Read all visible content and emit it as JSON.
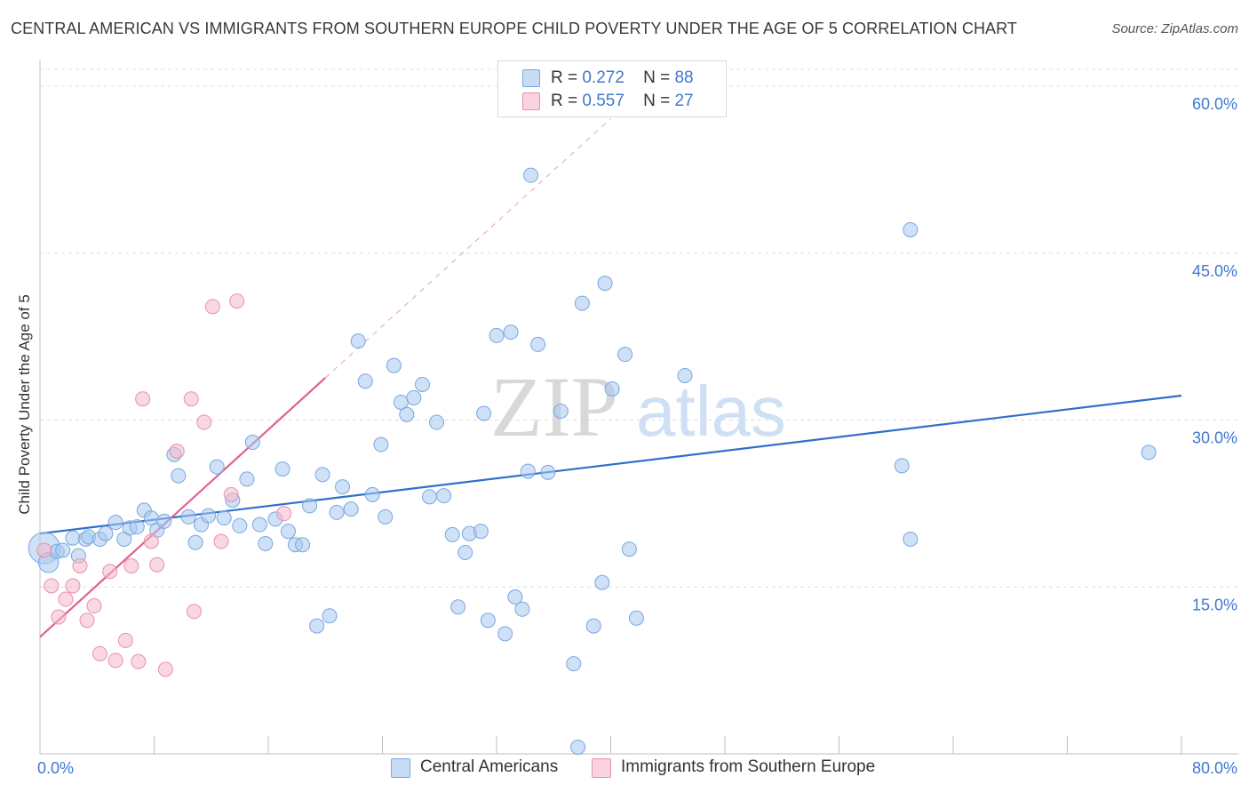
{
  "title": "CENTRAL AMERICAN VS IMMIGRANTS FROM SOUTHERN EUROPE CHILD POVERTY UNDER THE AGE OF 5 CORRELATION CHART",
  "source": "Source: ZipAtlas.com",
  "watermark": {
    "zip": "ZIP",
    "atlas": "atlas"
  },
  "legend_top": {
    "rows": [
      {
        "r_label": "R =",
        "r_value": "0.272",
        "n_label": "N =",
        "n_value": "88",
        "color": "#a8c8f0"
      },
      {
        "r_label": "R =",
        "r_value": "0.557",
        "n_label": "N =",
        "n_value": "27",
        "color": "#f5b8c8"
      }
    ]
  },
  "legend_bottom": {
    "items": [
      {
        "label": "Central Americans",
        "color": "#a8c8f0"
      },
      {
        "label": "Immigrants from Southern Europe",
        "color": "#f5b8c8"
      }
    ]
  },
  "chart_data": {
    "type": "scatter",
    "title": "CENTRAL AMERICAN VS IMMIGRANTS FROM SOUTHERN EUROPE CHILD POVERTY UNDER THE AGE OF 5 CORRELATION CHART",
    "xlabel": "",
    "ylabel": "Child Poverty Under the Age of 5",
    "xlim": [
      0,
      80
    ],
    "ylim": [
      0,
      62
    ],
    "x_tick_labels": [
      {
        "value": 0,
        "label": "0.0%"
      },
      {
        "value": 80,
        "label": "80.0%"
      }
    ],
    "y_tick_labels": [
      {
        "value": 15,
        "label": "15.0%"
      },
      {
        "value": 30,
        "label": "30.0%"
      },
      {
        "value": 45,
        "label": "45.0%"
      },
      {
        "value": 60,
        "label": "60.0%"
      }
    ],
    "x_minor_ticks": [
      8,
      16,
      24,
      32,
      40,
      48,
      56,
      64,
      72,
      80
    ],
    "grid": true,
    "legend_position": "top-center",
    "series": [
      {
        "name": "Central Americans",
        "color": "#a8c8f0",
        "stroke": "#7aa6e0",
        "trend": {
          "x": [
            0,
            80
          ],
          "y": [
            19.8,
            32.2
          ],
          "color": "#2f6fcc"
        },
        "points": [
          [
            0.3,
            18.5,
            2.2
          ],
          [
            0.6,
            17.2,
            1.4
          ],
          [
            1.2,
            18.2,
            1.0
          ],
          [
            1.6,
            18.3,
            1.0
          ],
          [
            2.3,
            19.4,
            1.0
          ],
          [
            2.7,
            17.8,
            1.0
          ],
          [
            3.2,
            19.3,
            1.0
          ],
          [
            3.4,
            19.5,
            1.0
          ],
          [
            4.2,
            19.3,
            1.0
          ],
          [
            4.6,
            19.8,
            1.0
          ],
          [
            5.3,
            20.8,
            1.0
          ],
          [
            5.9,
            19.3,
            1.0
          ],
          [
            6.3,
            20.3,
            1.0
          ],
          [
            6.8,
            20.4,
            1.0
          ],
          [
            7.3,
            21.9,
            1.0
          ],
          [
            7.8,
            21.2,
            1.0
          ],
          [
            8.2,
            20.1,
            1.0
          ],
          [
            8.7,
            20.9,
            1.0
          ],
          [
            9.4,
            26.9,
            1.0
          ],
          [
            9.7,
            25.0,
            1.0
          ],
          [
            10.4,
            21.3,
            1.0
          ],
          [
            10.9,
            19.0,
            1.0
          ],
          [
            11.3,
            20.6,
            1.0
          ],
          [
            11.8,
            21.4,
            1.0
          ],
          [
            12.4,
            25.8,
            1.0
          ],
          [
            12.9,
            21.2,
            1.0
          ],
          [
            13.5,
            22.8,
            1.0
          ],
          [
            14.0,
            20.5,
            1.0
          ],
          [
            14.5,
            24.7,
            1.0
          ],
          [
            14.9,
            28.0,
            1.0
          ],
          [
            15.4,
            20.6,
            1.0
          ],
          [
            15.8,
            18.9,
            1.0
          ],
          [
            16.5,
            21.1,
            1.0
          ],
          [
            17.0,
            25.6,
            1.0
          ],
          [
            17.4,
            20.0,
            1.0
          ],
          [
            17.9,
            18.8,
            1.0
          ],
          [
            18.4,
            18.8,
            1.0
          ],
          [
            18.9,
            22.3,
            1.0
          ],
          [
            19.4,
            11.5,
            1.0
          ],
          [
            19.8,
            25.1,
            1.0
          ],
          [
            20.3,
            12.4,
            1.0
          ],
          [
            20.8,
            21.7,
            1.0
          ],
          [
            21.2,
            24.0,
            1.0
          ],
          [
            21.8,
            22.0,
            1.0
          ],
          [
            22.3,
            37.1,
            1.0
          ],
          [
            22.8,
            33.5,
            1.0
          ],
          [
            23.3,
            23.3,
            1.0
          ],
          [
            23.9,
            27.8,
            1.0
          ],
          [
            24.2,
            21.3,
            1.0
          ],
          [
            24.8,
            34.9,
            1.0
          ],
          [
            25.3,
            31.6,
            1.0
          ],
          [
            25.7,
            30.5,
            1.0
          ],
          [
            26.2,
            32.0,
            1.0
          ],
          [
            26.8,
            33.2,
            1.0
          ],
          [
            27.3,
            23.1,
            1.0
          ],
          [
            27.8,
            29.8,
            1.0
          ],
          [
            28.3,
            23.2,
            1.0
          ],
          [
            28.9,
            19.7,
            1.0
          ],
          [
            29.3,
            13.2,
            1.0
          ],
          [
            29.8,
            18.1,
            1.0
          ],
          [
            30.1,
            19.8,
            1.0
          ],
          [
            30.9,
            20.0,
            1.0
          ],
          [
            31.1,
            30.6,
            1.0
          ],
          [
            31.4,
            12.0,
            1.0
          ],
          [
            32.0,
            37.6,
            1.0
          ],
          [
            32.6,
            10.8,
            1.0
          ],
          [
            33.0,
            37.9,
            1.0
          ],
          [
            33.3,
            14.1,
            1.0
          ],
          [
            33.8,
            13.0,
            1.0
          ],
          [
            34.2,
            25.4,
            1.0
          ],
          [
            34.4,
            52.0,
            1.0
          ],
          [
            34.9,
            36.8,
            1.0
          ],
          [
            35.6,
            25.3,
            1.0
          ],
          [
            36.5,
            30.8,
            1.0
          ],
          [
            37.4,
            8.1,
            1.0
          ],
          [
            37.7,
            0.6,
            1.0
          ],
          [
            38.0,
            40.5,
            1.0
          ],
          [
            38.8,
            11.5,
            1.0
          ],
          [
            39.4,
            15.4,
            1.0
          ],
          [
            39.6,
            42.3,
            1.0
          ],
          [
            40.1,
            32.8,
            1.0
          ],
          [
            41.0,
            35.9,
            1.0
          ],
          [
            41.3,
            18.4,
            1.0
          ],
          [
            41.8,
            12.2,
            1.0
          ],
          [
            45.2,
            34.0,
            1.0
          ],
          [
            61.0,
            47.1,
            1.0
          ],
          [
            60.4,
            25.9,
            1.0
          ],
          [
            61.0,
            19.3,
            1.0
          ],
          [
            77.7,
            27.1,
            1.0
          ]
        ]
      },
      {
        "name": "Immigrants from Southern Europe",
        "color": "#f5b8c8",
        "stroke": "#e890aa",
        "trend": {
          "x": [
            0,
            20
          ],
          "y": [
            10.5,
            33.8
          ],
          "color": "#e06090"
        },
        "trend_extension": {
          "x": [
            20,
            40
          ],
          "y": [
            33.8,
            57.1
          ]
        },
        "points": [
          [
            0.3,
            18.3,
            1.0
          ],
          [
            0.8,
            15.1,
            1.0
          ],
          [
            1.3,
            12.3,
            1.0
          ],
          [
            1.8,
            13.9,
            1.0
          ],
          [
            2.3,
            15.1,
            1.0
          ],
          [
            2.8,
            16.9,
            1.0
          ],
          [
            3.3,
            12.0,
            1.0
          ],
          [
            3.8,
            13.3,
            1.0
          ],
          [
            4.2,
            9.0,
            1.0
          ],
          [
            4.9,
            16.4,
            1.0
          ],
          [
            5.3,
            8.4,
            1.0
          ],
          [
            6.0,
            10.2,
            1.0
          ],
          [
            6.4,
            16.9,
            1.0
          ],
          [
            6.9,
            8.3,
            1.0
          ],
          [
            7.2,
            31.9,
            1.0
          ],
          [
            7.8,
            19.1,
            1.0
          ],
          [
            8.2,
            17.0,
            1.0
          ],
          [
            8.8,
            7.6,
            1.0
          ],
          [
            9.6,
            27.2,
            1.0
          ],
          [
            10.6,
            31.9,
            1.0
          ],
          [
            10.8,
            12.8,
            1.0
          ],
          [
            11.5,
            29.8,
            1.0
          ],
          [
            12.1,
            40.2,
            1.0
          ],
          [
            12.7,
            19.1,
            1.0
          ],
          [
            13.4,
            23.3,
            1.0
          ],
          [
            13.8,
            40.7,
            1.0
          ],
          [
            17.1,
            21.6,
            1.0
          ]
        ]
      }
    ]
  }
}
